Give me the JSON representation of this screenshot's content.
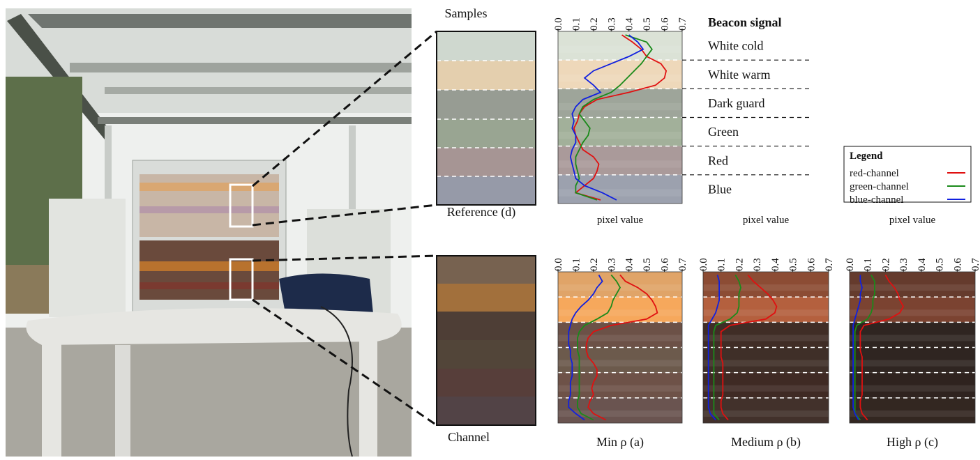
{
  "labels": {
    "samples": "Samples",
    "reference": "Reference (d)",
    "channel": "Channel"
  },
  "chart_data": [
    {
      "type": "line",
      "title": "Beacon signal",
      "bands": [
        "White cold",
        "White warm",
        "Dark guard",
        "Green",
        "Red",
        "Blue"
      ],
      "band_colors": [
        "#dbe2d6",
        "#eed8ba",
        "#9ea59a",
        "#a2b09a",
        "#aa9a9a",
        "#9ca1ae"
      ],
      "xlim": [
        0,
        0.7
      ],
      "xticks": [
        {
          "value": 0,
          "label": "0.0"
        },
        0.1,
        0.2,
        0.3,
        0.4,
        0.5,
        0.6,
        0.7
      ],
      "legend_title": "Legend",
      "legend": "right",
      "series": [
        {
          "name": "red-channel",
          "color": "#e01010",
          "values": [
            0.36,
            0.42,
            0.47,
            0.5,
            0.58,
            0.61,
            0.6,
            0.55,
            0.4,
            0.22,
            0.15,
            0.12,
            0.11,
            0.09,
            0.1,
            0.12,
            0.14,
            0.2,
            0.23,
            0.22,
            0.2,
            0.15,
            0.1,
            0.24
          ]
        },
        {
          "name": "green-channel",
          "color": "#1a8a1a",
          "values": [
            0.38,
            0.5,
            0.53,
            0.5,
            0.47,
            0.43,
            0.39,
            0.35,
            0.3,
            0.2,
            0.14,
            0.12,
            0.15,
            0.18,
            0.17,
            0.14,
            0.12,
            0.1,
            0.1,
            0.11,
            0.12,
            0.1,
            0.1,
            0.22
          ]
        },
        {
          "name": "blue-channel",
          "color": "#1020e0",
          "values": [
            0.4,
            0.45,
            0.48,
            0.4,
            0.3,
            0.2,
            0.15,
            0.2,
            0.24,
            0.14,
            0.1,
            0.08,
            0.09,
            0.08,
            0.1,
            0.1,
            0.08,
            0.07,
            0.08,
            0.09,
            0.1,
            0.15,
            0.25,
            0.33
          ]
        }
      ]
    },
    {
      "type": "line",
      "caption": "Min ρ (a)",
      "xlabel": "pixel value",
      "band_colors": [
        "#e0a468",
        "#f6a85c",
        "#6c5147",
        "#6c5a4c",
        "#6e5248",
        "#6a5450"
      ],
      "xlim": [
        0,
        0.7
      ],
      "xticks": [
        {
          "value": 0,
          "label": "0.0"
        },
        0.1,
        0.2,
        0.3,
        0.4,
        0.5,
        0.6,
        0.7
      ],
      "series": [
        {
          "color": "#e01010",
          "values": [
            0.35,
            0.38,
            0.45,
            0.5,
            0.53,
            0.55,
            0.56,
            0.5,
            0.3,
            0.2,
            0.17,
            0.16,
            0.16,
            0.17,
            0.2,
            0.22,
            0.22,
            0.2,
            0.19,
            0.2,
            0.18,
            0.17,
            0.2,
            0.27
          ]
        },
        {
          "color": "#1a8a1a",
          "values": [
            0.3,
            0.33,
            0.35,
            0.33,
            0.31,
            0.3,
            0.28,
            0.22,
            0.15,
            0.12,
            0.11,
            0.11,
            0.11,
            0.12,
            0.12,
            0.12,
            0.12,
            0.12,
            0.12,
            0.12,
            0.11,
            0.11,
            0.13,
            0.2
          ]
        },
        {
          "color": "#1020e0",
          "values": [
            0.23,
            0.25,
            0.22,
            0.2,
            0.17,
            0.13,
            0.1,
            0.08,
            0.07,
            0.06,
            0.06,
            0.06,
            0.07,
            0.07,
            0.08,
            0.08,
            0.08,
            0.07,
            0.07,
            0.07,
            0.06,
            0.06,
            0.1,
            0.15
          ]
        }
      ]
    },
    {
      "type": "line",
      "caption": "Medium ρ (b)",
      "xlabel": "pixel value",
      "band_colors": [
        "#8c4c34",
        "#b4603e",
        "#402d26",
        "#3f2f28",
        "#3f2a24",
        "#42312b"
      ],
      "xlim": [
        0,
        0.7
      ],
      "xticks": [
        {
          "value": 0,
          "label": "0.0"
        },
        0.1,
        0.2,
        0.3,
        0.4,
        0.5,
        0.6,
        0.7
      ],
      "series": [
        {
          "color": "#e01010",
          "values": [
            0.25,
            0.28,
            0.32,
            0.36,
            0.39,
            0.41,
            0.4,
            0.35,
            0.15,
            0.1,
            0.1,
            0.1,
            0.1,
            0.1,
            0.11,
            0.11,
            0.11,
            0.11,
            0.11,
            0.11,
            0.1,
            0.1,
            0.11,
            0.14
          ]
        },
        {
          "color": "#1a8a1a",
          "values": [
            0.18,
            0.2,
            0.21,
            0.2,
            0.2,
            0.2,
            0.19,
            0.15,
            0.07,
            0.06,
            0.06,
            0.06,
            0.06,
            0.06,
            0.06,
            0.06,
            0.06,
            0.06,
            0.06,
            0.06,
            0.06,
            0.06,
            0.06,
            0.09
          ]
        },
        {
          "color": "#1020e0",
          "values": [
            0.08,
            0.09,
            0.09,
            0.09,
            0.09,
            0.08,
            0.07,
            0.05,
            0.03,
            0.03,
            0.03,
            0.03,
            0.03,
            0.03,
            0.03,
            0.03,
            0.03,
            0.03,
            0.03,
            0.03,
            0.03,
            0.03,
            0.04,
            0.07
          ]
        }
      ]
    },
    {
      "type": "line",
      "caption": "High ρ (c)",
      "xlabel": "pixel value",
      "band_colors": [
        "#653b2d",
        "#7b4331",
        "#2f2521",
        "#2f2521",
        "#2f231f",
        "#332721"
      ],
      "xlim": [
        0,
        0.7
      ],
      "xticks": [
        {
          "value": 0,
          "label": "0.0"
        },
        0.1,
        0.2,
        0.3,
        0.4,
        0.5,
        0.6,
        0.7
      ],
      "series": [
        {
          "color": "#e01010",
          "values": [
            0.2,
            0.22,
            0.25,
            0.27,
            0.28,
            0.3,
            0.28,
            0.22,
            0.08,
            0.06,
            0.06,
            0.06,
            0.06,
            0.07,
            0.07,
            0.07,
            0.07,
            0.07,
            0.07,
            0.07,
            0.06,
            0.06,
            0.07,
            0.1
          ]
        },
        {
          "color": "#1a8a1a",
          "values": [
            0.12,
            0.14,
            0.14,
            0.14,
            0.13,
            0.13,
            0.12,
            0.1,
            0.04,
            0.03,
            0.03,
            0.03,
            0.03,
            0.03,
            0.03,
            0.03,
            0.03,
            0.03,
            0.03,
            0.03,
            0.03,
            0.03,
            0.03,
            0.06
          ]
        },
        {
          "color": "#1020e0",
          "values": [
            0.06,
            0.06,
            0.07,
            0.06,
            0.06,
            0.05,
            0.04,
            0.03,
            0.02,
            0.02,
            0.02,
            0.02,
            0.02,
            0.02,
            0.02,
            0.02,
            0.02,
            0.02,
            0.02,
            0.02,
            0.02,
            0.02,
            0.03,
            0.05
          ]
        }
      ]
    }
  ]
}
